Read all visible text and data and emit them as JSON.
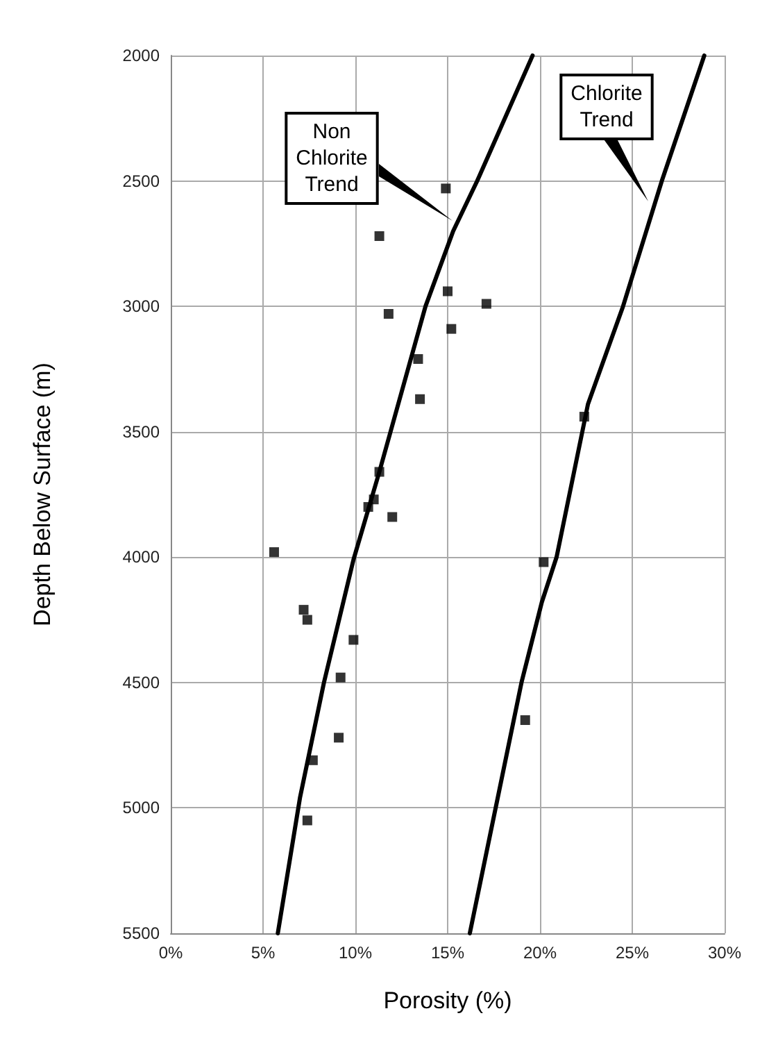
{
  "chart_data": {
    "type": "scatter",
    "xlabel": "Porosity (%)",
    "ylabel": "Depth Below Surface (m)",
    "xlim": [
      0,
      30
    ],
    "xticks": [
      {
        "value": 0,
        "label": "0%"
      },
      {
        "value": 5,
        "label": "5%"
      },
      {
        "value": 10,
        "label": "10%"
      },
      {
        "value": 15,
        "label": "15%"
      },
      {
        "value": 20,
        "label": "20%"
      },
      {
        "value": 25,
        "label": "25%"
      },
      {
        "value": 30,
        "label": "30%"
      }
    ],
    "ylim": [
      5500,
      2000
    ],
    "yticks": [
      2000,
      2500,
      3000,
      3500,
      4000,
      4500,
      5000,
      5500
    ],
    "grid": true,
    "series": [
      {
        "type": "scatter",
        "color": "#000000",
        "marker": "square",
        "x": [
          14.9,
          11.3,
          15.0,
          17.1,
          11.8,
          15.2,
          13.4,
          13.5,
          22.4,
          11.3,
          11.0,
          10.7,
          12.0,
          5.6,
          20.2,
          7.2,
          7.4,
          9.9,
          9.2,
          19.2,
          9.1,
          7.7,
          7.4
        ],
        "values": [
          2530,
          2720,
          2940,
          2990,
          3030,
          3090,
          3210,
          3370,
          3440,
          3660,
          3770,
          3800,
          3840,
          3980,
          4020,
          4210,
          4250,
          4330,
          4480,
          4650,
          4720,
          4810,
          5050
        ]
      },
      {
        "type": "line",
        "color": "#000000",
        "marker": "none",
        "line_style": "solid",
        "x": [
          5.8,
          7.0,
          8.3,
          9.9,
          11.3,
          13.8,
          15.3,
          16.6,
          19.6
        ],
        "values": [
          5500,
          4960,
          4500,
          4010,
          3660,
          3000,
          2700,
          2500,
          2000
        ]
      },
      {
        "type": "line",
        "color": "#000000",
        "marker": "none",
        "line_style": "solid",
        "x": [
          16.2,
          17.6,
          19.0,
          20.1,
          20.9,
          22.6,
          24.5,
          26.6,
          28.9
        ],
        "values": [
          5500,
          5000,
          4500,
          4180,
          4000,
          3390,
          3000,
          2500,
          2000
        ]
      }
    ],
    "annotations": [
      "Non\nChlorite\nTrend",
      "Chlorite\nTrend"
    ]
  }
}
